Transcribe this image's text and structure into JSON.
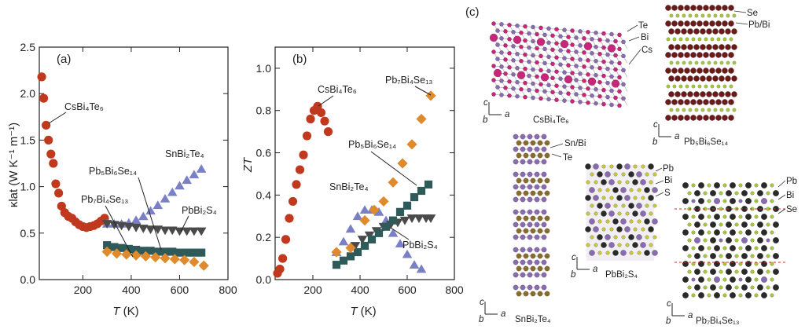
{
  "colors": {
    "csbi4te6": "#c0391e",
    "snbi2te4": "#7a80c6",
    "pbbi2s4": "#4a4a4a",
    "pb5bi6se14": "#2f5a5a",
    "pb7bi4se13": "#e08a2e",
    "te_atom": "#c8267a",
    "bi_atom": "#8b6bb0",
    "cs_atom": "#c8267a",
    "se_atom": "#a5c83a",
    "pb_atom": "#6b1a1a",
    "sn_atom": "#8a6b2a",
    "s_atom": "#c8c83a",
    "pb_dark_atom": "#2a2a2a",
    "guide_line": "#d9271b"
  },
  "chart_data": [
    {
      "id": "a",
      "type": "scatter",
      "panel_label": "(a)",
      "xlabel_italic": "T",
      "xlabel_rest": " (K)",
      "ylabel": "κlat (W K⁻¹ m⁻¹)",
      "xlim": [
        20,
        800
      ],
      "ylim": [
        0,
        2.5
      ],
      "xticks": [
        200,
        400,
        600,
        800
      ],
      "yticks": [
        0,
        0.5,
        1.0,
        1.5,
        2.0,
        2.5
      ],
      "ytick_labels": [
        "0.0",
        "0.5",
        "1.0",
        "1.5",
        "2.0",
        "2.5"
      ],
      "series": [
        {
          "name": "CsBi4Te6",
          "label": "CsBi₄Te₆",
          "marker": "circle",
          "color_key": "csbi4te6",
          "x": [
            30,
            38,
            48,
            58,
            68,
            78,
            88,
            100,
            112,
            125,
            140,
            155,
            170,
            185,
            200,
            215,
            230,
            245,
            260,
            275,
            290
          ],
          "y": [
            2.18,
            1.95,
            1.66,
            1.5,
            1.35,
            1.25,
            1.03,
            0.93,
            0.79,
            0.72,
            0.68,
            0.66,
            0.62,
            0.59,
            0.57,
            0.56,
            0.57,
            0.58,
            0.6,
            0.63,
            0.66
          ]
        },
        {
          "name": "SnBi2Te4",
          "label": "SnBi₂Te₄",
          "marker": "triangle-up",
          "color_key": "snbi2te4",
          "x": [
            300,
            330,
            360,
            390,
            420,
            450,
            480,
            510,
            540,
            570,
            600,
            630,
            660,
            690
          ],
          "y": [
            0.6,
            0.6,
            0.6,
            0.61,
            0.64,
            0.68,
            0.74,
            0.8,
            0.87,
            0.94,
            1.01,
            1.07,
            1.13,
            1.19
          ]
        },
        {
          "name": "PbBi2S4",
          "label": "PbBi₂S₄",
          "marker": "triangle-down",
          "color_key": "pbbi2s4",
          "x": [
            300,
            330,
            360,
            390,
            420,
            450,
            480,
            510,
            540,
            570,
            600,
            630,
            660,
            690
          ],
          "y": [
            0.6,
            0.59,
            0.58,
            0.57,
            0.56,
            0.55,
            0.54,
            0.54,
            0.53,
            0.53,
            0.52,
            0.52,
            0.52,
            0.52
          ]
        },
        {
          "name": "Pb5Bi6Se14",
          "label": "Pb₅Bi₆Se₁₄",
          "marker": "square",
          "color_key": "pb5bi6se14",
          "x": [
            300,
            330,
            360,
            390,
            420,
            450,
            480,
            510,
            540,
            570,
            600,
            630,
            660,
            690
          ],
          "y": [
            0.37,
            0.35,
            0.34,
            0.33,
            0.32,
            0.31,
            0.31,
            0.3,
            0.3,
            0.3,
            0.29,
            0.29,
            0.29,
            0.29
          ]
        },
        {
          "name": "Pb7Bi4Se13",
          "label": "Pb₇Bi₄Se₁₃",
          "marker": "diamond",
          "color_key": "pb7bi4se13",
          "x": [
            300,
            340,
            380,
            420,
            460,
            500,
            540,
            580,
            620,
            660,
            700
          ],
          "y": [
            0.3,
            0.28,
            0.27,
            0.26,
            0.25,
            0.24,
            0.23,
            0.22,
            0.21,
            0.19,
            0.15
          ]
        }
      ]
    },
    {
      "id": "b",
      "type": "scatter",
      "panel_label": "(b)",
      "xlabel_italic": "T",
      "xlabel_rest": " (K)",
      "ylabel": "ZT",
      "xlim": [
        40,
        800
      ],
      "ylim": [
        0,
        1.1
      ],
      "xticks": [
        200,
        400,
        600,
        800
      ],
      "yticks": [
        0,
        0.2,
        0.4,
        0.6,
        0.8,
        1.0
      ],
      "ytick_labels": [
        "0.0",
        "0.2",
        "0.4",
        "0.6",
        "0.8",
        "1.0"
      ],
      "series": [
        {
          "name": "CsBi4Te6",
          "label": "CsBi₄Te₆",
          "marker": "circle",
          "color_key": "csbi4te6",
          "x": [
            50,
            60,
            72,
            85,
            100,
            115,
            130,
            145,
            160,
            175,
            190,
            205,
            220,
            235,
            250,
            265
          ],
          "y": [
            0.03,
            0.05,
            0.1,
            0.19,
            0.29,
            0.37,
            0.45,
            0.52,
            0.59,
            0.68,
            0.76,
            0.8,
            0.82,
            0.79,
            0.75,
            0.7
          ]
        },
        {
          "name": "SnBi2Te4",
          "label": "SnBi₂Te₄",
          "marker": "triangle-up",
          "color_key": "snbi2te4",
          "x": [
            300,
            330,
            360,
            390,
            420,
            450,
            480,
            510,
            540,
            570,
            600,
            630,
            660
          ],
          "y": [
            0.13,
            0.18,
            0.24,
            0.3,
            0.33,
            0.33,
            0.32,
            0.28,
            0.22,
            0.17,
            0.12,
            0.07,
            0.05
          ]
        },
        {
          "name": "PbBi2S4",
          "label": "PbBi₂S₄",
          "marker": "triangle-down",
          "color_key": "pbbi2s4",
          "x": [
            380,
            410,
            440,
            470,
            500,
            530,
            560,
            590,
            620,
            650,
            680,
            700
          ],
          "y": [
            0.16,
            0.19,
            0.21,
            0.23,
            0.25,
            0.26,
            0.27,
            0.28,
            0.29,
            0.29,
            0.29,
            0.29
          ]
        },
        {
          "name": "Pb5Bi6Se14",
          "label": "Pb₅Bi₆Se₁₄",
          "marker": "square",
          "color_key": "pb5bi6se14",
          "x": [
            300,
            330,
            360,
            390,
            420,
            450,
            480,
            510,
            540,
            570,
            600,
            630,
            660,
            690
          ],
          "y": [
            0.07,
            0.09,
            0.11,
            0.13,
            0.16,
            0.19,
            0.22,
            0.25,
            0.28,
            0.32,
            0.35,
            0.39,
            0.42,
            0.45
          ]
        },
        {
          "name": "Pb7Bi4Se13",
          "label": "Pb₇Bi₄Se₁₃",
          "marker": "diamond",
          "color_key": "pb7bi4se13",
          "x": [
            300,
            360,
            420,
            460,
            500,
            540,
            580,
            620,
            660,
            700
          ],
          "y": [
            0.13,
            0.15,
            0.28,
            0.33,
            0.37,
            0.46,
            0.55,
            0.64,
            0.76,
            0.87
          ]
        }
      ]
    }
  ],
  "structures": {
    "panel_label": "(c)",
    "axis_c": "c",
    "axis_a": "a",
    "axis_b": "b",
    "cs": {
      "name": "CsBi₄Te₆",
      "labels": [
        "Te",
        "Bi",
        "Cs"
      ]
    },
    "pb5": {
      "name": "Pb₅Bi₆Se₁₄",
      "labels": [
        "Se",
        "Pb/Bi"
      ]
    },
    "sn": {
      "name": "SnBi₂Te₄",
      "labels": [
        "Sn/Bi",
        "Te"
      ]
    },
    "pbs": {
      "name": "PbBi₂S₄",
      "labels": [
        "Pb",
        "Bi",
        "S"
      ]
    },
    "pb7": {
      "name": "Pb₇Bi₄Se₁₃",
      "labels": [
        "Pb",
        "Bi",
        "Se"
      ]
    }
  }
}
